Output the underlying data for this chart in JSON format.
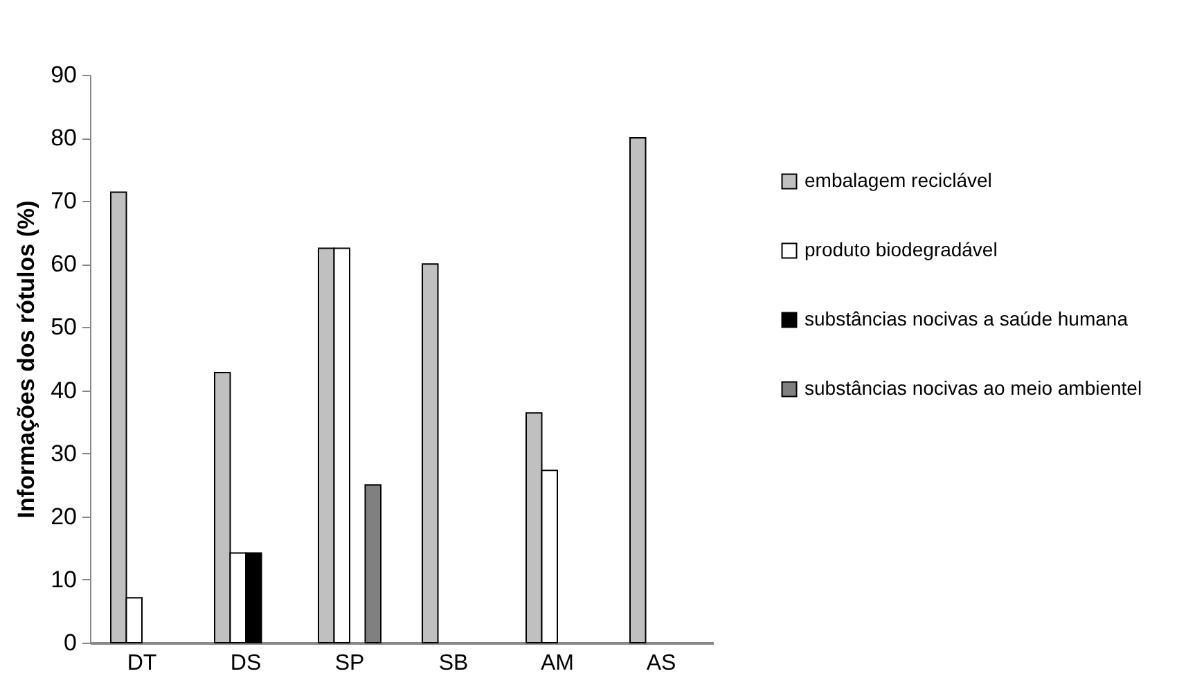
{
  "chart_data": {
    "type": "bar",
    "ylabel": "Informações dos rótulos (%)",
    "categories": [
      "DT",
      "DS",
      "SP",
      "SB",
      "AM",
      "AS"
    ],
    "series": [
      {
        "name": "embalagem reciclável",
        "color": "#c0c0c0",
        "values": [
          71.4,
          42.8,
          62.5,
          60,
          36.4,
          80
        ]
      },
      {
        "name": "produto biodegradável",
        "color": "#ffffff",
        "values": [
          7.1,
          14.2,
          62.5,
          null,
          27.3,
          null
        ]
      },
      {
        "name": "substâncias nocivas a saúde humana",
        "color": "#000000",
        "values": [
          null,
          14.2,
          null,
          null,
          null,
          null
        ]
      },
      {
        "name": "substâncias nocivas ao meio ambientel",
        "color": "#808080",
        "values": [
          null,
          null,
          25,
          null,
          null,
          null
        ]
      }
    ],
    "ylim": [
      0,
      90
    ],
    "yticks": [
      0,
      10,
      20,
      30,
      40,
      50,
      60,
      70,
      80,
      90
    ],
    "grid": false,
    "legend": "right"
  }
}
